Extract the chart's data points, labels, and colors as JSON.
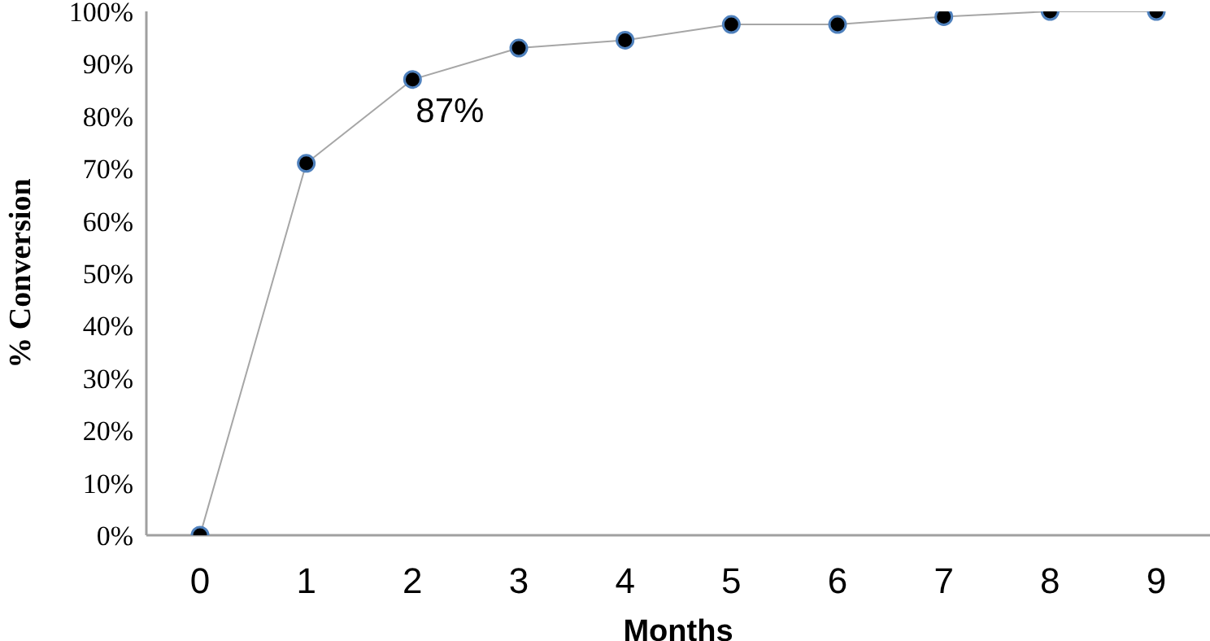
{
  "chart_data": {
    "type": "line",
    "xlabel": "Months",
    "ylabel": "% Conversion",
    "categories": [
      "0",
      "1",
      "2",
      "3",
      "4",
      "5",
      "6",
      "7",
      "8",
      "9"
    ],
    "series": [
      {
        "color": "#000000",
        "values": [
          0,
          71,
          87,
          93,
          94.5,
          97.5,
          97.5,
          99,
          100,
          100
        ]
      }
    ],
    "ylim": [
      0,
      100
    ],
    "yticks": [
      {
        "value": 0,
        "label": "0%"
      },
      {
        "value": 10,
        "label": "10%"
      },
      {
        "value": 20,
        "label": "20%"
      },
      {
        "value": 30,
        "label": "30%"
      },
      {
        "value": 40,
        "label": "40%"
      },
      {
        "value": 50,
        "label": "50%"
      },
      {
        "value": 60,
        "label": "60%"
      },
      {
        "value": 70,
        "label": "70%"
      },
      {
        "value": 80,
        "label": "80%"
      },
      {
        "value": 90,
        "label": "90%"
      },
      {
        "value": 100,
        "label": "100%"
      }
    ],
    "marker": "circle",
    "grid": false,
    "legend": false,
    "annotations": [
      {
        "text": "87%",
        "x": "2",
        "y": 87
      }
    ]
  }
}
